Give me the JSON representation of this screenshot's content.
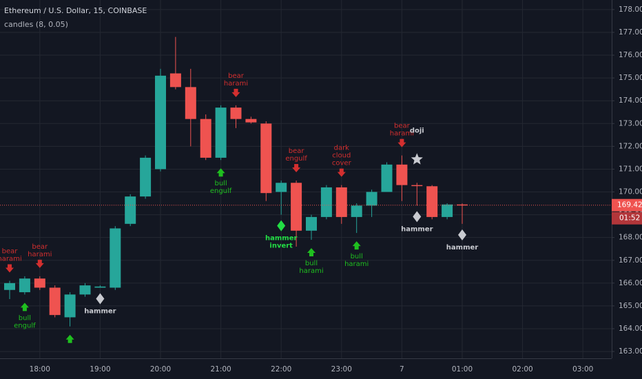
{
  "chart_data": {
    "type": "candlestick",
    "title": "Ethereum / U.S. Dollar, 15, COINBASE",
    "indicator": "candles (8, 0.05)",
    "categories": [
      null,
      null,
      "18:00",
      null,
      null,
      null,
      "19:00",
      null,
      null,
      null,
      "20:00",
      null,
      null,
      null,
      "21:00",
      null,
      null,
      null,
      "22:00",
      null,
      null,
      null,
      "23:00",
      null,
      null,
      null,
      "7",
      null,
      null,
      null,
      "01:00"
    ],
    "future_xlabels": [
      "02:00",
      "03:00"
    ],
    "open": [
      165.7,
      165.6,
      166.2,
      165.8,
      164.5,
      165.5,
      165.8,
      165.8,
      168.6,
      169.8,
      171.0,
      175.2,
      174.6,
      173.2,
      171.5,
      173.7,
      173.2,
      173.0,
      170.0,
      170.4,
      168.3,
      168.9,
      170.2,
      168.9,
      169.4,
      170.0,
      171.2,
      170.3,
      170.25,
      168.9,
      169.45
    ],
    "high": [
      166.1,
      166.3,
      166.3,
      165.9,
      165.6,
      166.0,
      165.9,
      168.5,
      169.9,
      171.6,
      175.4,
      176.8,
      175.4,
      173.4,
      173.8,
      173.8,
      173.3,
      173.1,
      170.5,
      170.5,
      169.0,
      170.3,
      170.3,
      169.5,
      170.1,
      171.3,
      171.6,
      170.4,
      170.3,
      169.5,
      169.5
    ],
    "low": [
      165.3,
      165.5,
      165.7,
      164.5,
      164.1,
      165.4,
      165.8,
      165.7,
      168.5,
      169.7,
      170.9,
      174.5,
      172.0,
      171.4,
      171.4,
      172.8,
      173.0,
      169.6,
      169.0,
      167.6,
      167.9,
      168.8,
      168.6,
      168.2,
      168.9,
      170.0,
      169.6,
      169.4,
      168.8,
      168.8,
      168.6
    ],
    "close": [
      166.0,
      166.2,
      165.8,
      164.6,
      165.5,
      165.9,
      165.85,
      168.4,
      169.8,
      171.5,
      175.1,
      174.6,
      173.2,
      171.5,
      173.7,
      173.2,
      173.05,
      169.95,
      170.4,
      168.3,
      168.9,
      170.2,
      168.9,
      169.4,
      170.0,
      171.2,
      170.3,
      170.28,
      168.9,
      169.45,
      169.42
    ],
    "up_color": "#26a69a",
    "down_color": "#ef5350",
    "ylim": [
      162.7,
      178.42
    ],
    "yticks": [
      {
        "value": 163,
        "label": "163.00"
      },
      {
        "value": 164,
        "label": "164.00"
      },
      {
        "value": 165,
        "label": "165.00"
      },
      {
        "value": 166,
        "label": "166.00"
      },
      {
        "value": 167,
        "label": "167.00"
      },
      {
        "value": 168,
        "label": "168.00"
      },
      {
        "value": 169,
        "label": "169.00"
      },
      {
        "value": 170,
        "label": "170.00"
      },
      {
        "value": 171,
        "label": "171.00"
      },
      {
        "value": 172,
        "label": "172.00"
      },
      {
        "value": 173,
        "label": "173.00"
      },
      {
        "value": 174,
        "label": "174.00"
      },
      {
        "value": 175,
        "label": "175.00"
      },
      {
        "value": 176,
        "label": "176.00"
      },
      {
        "value": 177,
        "label": "177.00"
      },
      {
        "value": 178,
        "label": "178.00"
      }
    ],
    "grid": true,
    "last_price": {
      "value": 169.42,
      "label": "169.42"
    },
    "countdown": "01:52",
    "patterns": [
      {
        "candle": 0,
        "side": "above",
        "marker": "arrow-down",
        "color": "#d32f2f",
        "lines": [
          "bear",
          "harami"
        ]
      },
      {
        "candle": 1,
        "side": "below",
        "marker": "arrow-up",
        "color": "#1fbf1f",
        "lines": [
          "bull",
          "engulf"
        ]
      },
      {
        "candle": 2,
        "side": "above",
        "marker": "arrow-down",
        "color": "#d32f2f",
        "lines": [
          "bear",
          "harami"
        ]
      },
      {
        "candle": 4,
        "side": "below",
        "marker": "arrow-up",
        "color": "#1fbf1f",
        "lines": []
      },
      {
        "candle": 6,
        "side": "below",
        "marker": "diamond",
        "color": "#c8cad0",
        "lines": [
          "hammer"
        ]
      },
      {
        "candle": 14,
        "side": "below",
        "marker": "arrow-up",
        "color": "#1fbf1f",
        "lines": [
          "bull",
          "engulf"
        ]
      },
      {
        "candle": 15,
        "side": "above",
        "marker": "arrow-down",
        "color": "#d32f2f",
        "lines": [
          "bear",
          "harami"
        ]
      },
      {
        "candle": 18,
        "side": "below",
        "marker": "diamond",
        "color": "#22dd44",
        "lines": [
          "hammer",
          "invert"
        ]
      },
      {
        "candle": 19,
        "side": "above",
        "marker": "arrow-down",
        "color": "#d32f2f",
        "lines": [
          "bear",
          "engulf"
        ]
      },
      {
        "candle": 20,
        "side": "below",
        "marker": "arrow-up",
        "color": "#1fbf1f",
        "lines": [
          "bull",
          "harami"
        ]
      },
      {
        "candle": 22,
        "side": "above",
        "marker": "arrow-down",
        "color": "#d32f2f",
        "lines": [
          "dark",
          "cloud",
          "cover"
        ]
      },
      {
        "candle": 23,
        "side": "below",
        "marker": "arrow-up",
        "color": "#1fbf1f",
        "lines": [
          "bull",
          "harami"
        ]
      },
      {
        "candle": 26,
        "side": "above",
        "marker": "arrow-down",
        "color": "#d32f2f",
        "lines": [
          "bear",
          "harami"
        ]
      },
      {
        "candle": 27,
        "side": "above",
        "marker": "star",
        "color": "#c8cad0",
        "lines": [
          "doji"
        ]
      },
      {
        "candle": 27,
        "side": "below",
        "marker": "diamond",
        "color": "#c8cad0",
        "lines": [
          "hammer"
        ]
      },
      {
        "candle": 30,
        "side": "below",
        "marker": "diamond",
        "color": "#c8cad0",
        "lines": [
          "hammer"
        ]
      }
    ]
  }
}
